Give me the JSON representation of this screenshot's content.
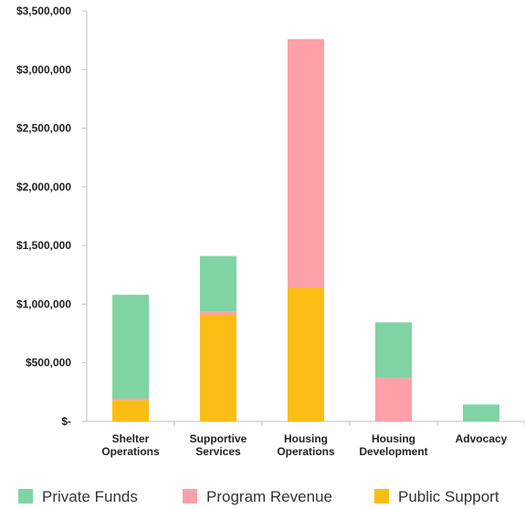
{
  "chart_data": {
    "type": "bar",
    "stacked": true,
    "categories": [
      [
        "Shelter",
        "Operations"
      ],
      [
        "Supportive",
        "Services"
      ],
      [
        "Housing",
        "Operations"
      ],
      [
        "Housing",
        "Development"
      ],
      [
        "Advocacy"
      ]
    ],
    "series": [
      {
        "name": "Public Support",
        "color": "#fbbd13",
        "values": [
          180000,
          910000,
          1140000,
          0,
          0
        ]
      },
      {
        "name": "Program Revenue",
        "color": "#fda0a8",
        "values": [
          15000,
          25000,
          2120000,
          370000,
          0
        ]
      },
      {
        "name": "Private Funds",
        "color": "#80d4a4",
        "values": [
          885000,
          475000,
          0,
          475000,
          145000
        ]
      }
    ],
    "legend_order": [
      "Private Funds",
      "Program Revenue",
      "Public Support"
    ],
    "legend_position": "bottom",
    "ylim": [
      0,
      3500000
    ],
    "yticks": [
      0,
      500000,
      1000000,
      1500000,
      2000000,
      2500000,
      3000000,
      3500000
    ],
    "ytick_labels": [
      "$-",
      "$500,000",
      "$1,000,000",
      "$1,500,000",
      "$2,000,000",
      "$2,500,000",
      "$3,000,000",
      "$3,500,000"
    ],
    "grid": false,
    "title": "",
    "xlabel": "",
    "ylabel": ""
  }
}
